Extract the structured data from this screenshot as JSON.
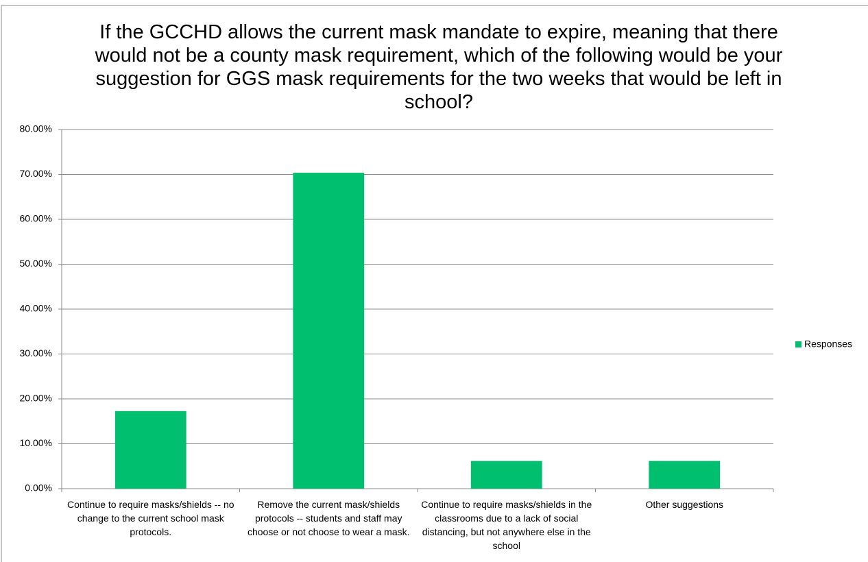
{
  "chart_data": {
    "type": "bar",
    "title": "If the GCCHD allows the current mask mandate to expire, meaning that there would not be a county mask requirement, which of the following would be your suggestion for GGS mask requirements for the two weeks that would be left in school?",
    "categories": [
      "Continue to require masks/shields -- no change to the current school mask protocols.",
      "Remove the current mask/shields protocols -- students and staff may choose or not choose to wear a mask.",
      "Continue to require masks/shields in the classrooms due to a lack of social distancing, but not anywhere else in the school",
      "Other suggestions"
    ],
    "series": [
      {
        "name": "Responses",
        "color": "#00bf6f",
        "values": [
          17.28,
          70.37,
          6.17,
          6.17
        ]
      }
    ],
    "ylim": [
      0,
      80
    ],
    "yticks": [
      {
        "value": 0,
        "label": "0.00%"
      },
      {
        "value": 10,
        "label": "10.00%"
      },
      {
        "value": 20,
        "label": "20.00%"
      },
      {
        "value": 30,
        "label": "30.00%"
      },
      {
        "value": 40,
        "label": "40.00%"
      },
      {
        "value": 50,
        "label": "50.00%"
      },
      {
        "value": 60,
        "label": "60.00%"
      },
      {
        "value": 70,
        "label": "70.00%"
      },
      {
        "value": 80,
        "label": "80.00%"
      }
    ],
    "grid": true,
    "legend": "right"
  }
}
